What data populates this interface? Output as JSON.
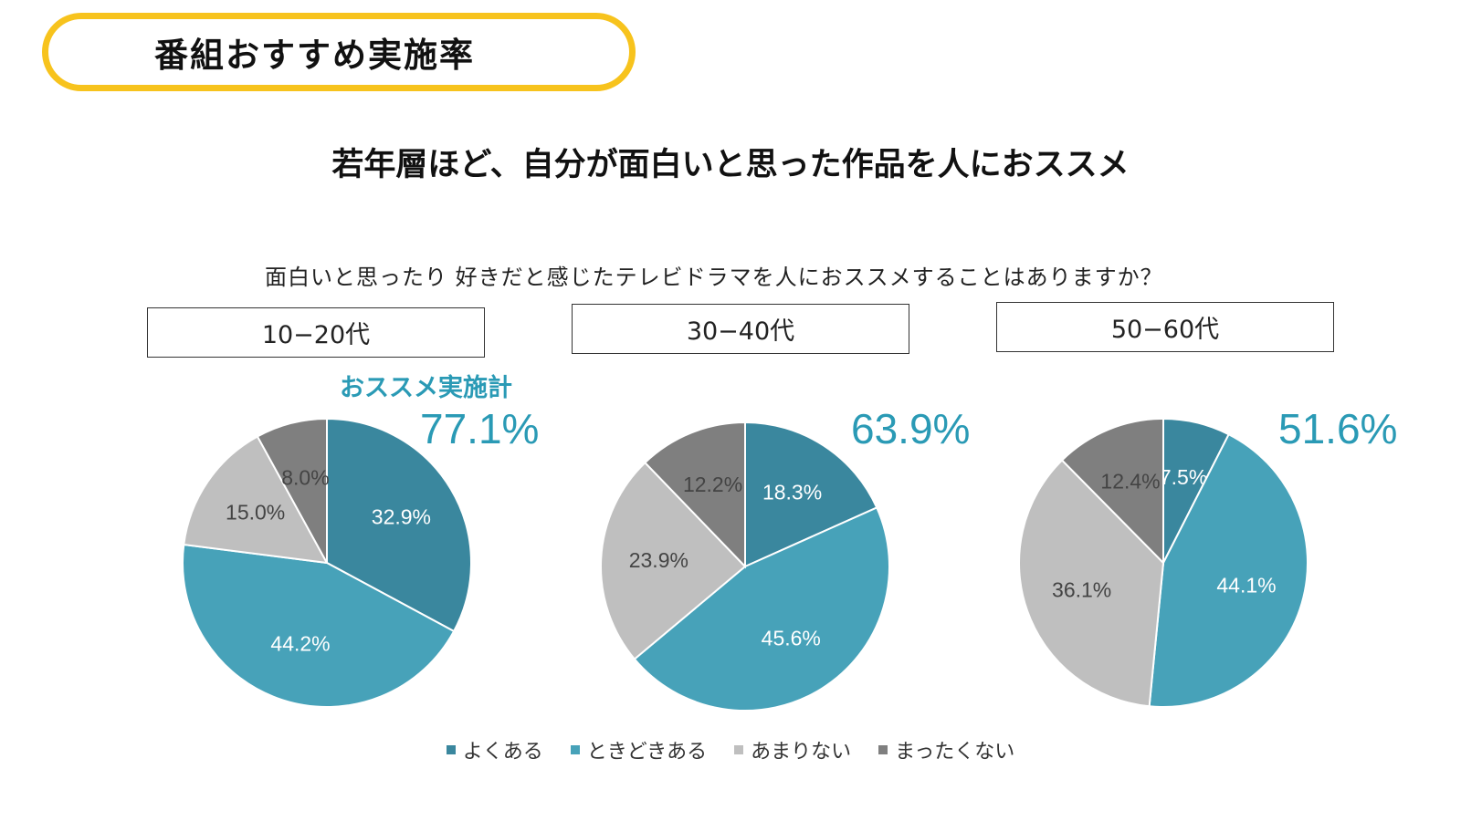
{
  "header": {
    "badge_title": "番組おすすめ実施率",
    "headline": "若年層ほど、自分が面白いと思った作品を人におススメ",
    "question": "面白いと思ったり 好きだと感じたテレビドラマを人におススメすることはありますか？"
  },
  "colors": {
    "accent_yellow": "#f7c31d",
    "accent_teal_text": "#2a9ab5"
  },
  "chart_data": {
    "type": "pie",
    "total_label": "おススメ実施計",
    "categories": [
      "よくある",
      "ときどきある",
      "あまりない",
      "まったくない"
    ],
    "category_colors": [
      "#3a879e",
      "#47a2b9",
      "#bfbfbf",
      "#7f7f7f"
    ],
    "legend_position": "bottom",
    "charts": [
      {
        "group": "10−20代",
        "total": "77.1%",
        "values": [
          32.9,
          44.2,
          15.0,
          8.0
        ],
        "labels": [
          "32.9%",
          "44.2%",
          "15.0%",
          "8.0%"
        ]
      },
      {
        "group": "30−40代",
        "total": "63.9%",
        "values": [
          18.3,
          45.6,
          23.9,
          12.2
        ],
        "labels": [
          "18.3%",
          "45.6%",
          "23.9%",
          "12.2%"
        ]
      },
      {
        "group": "50−60代",
        "total": "51.6%",
        "values": [
          7.5,
          44.1,
          36.1,
          12.4
        ],
        "labels": [
          "7.5%",
          "44.1%",
          "36.1%",
          "12.4%"
        ]
      }
    ]
  }
}
